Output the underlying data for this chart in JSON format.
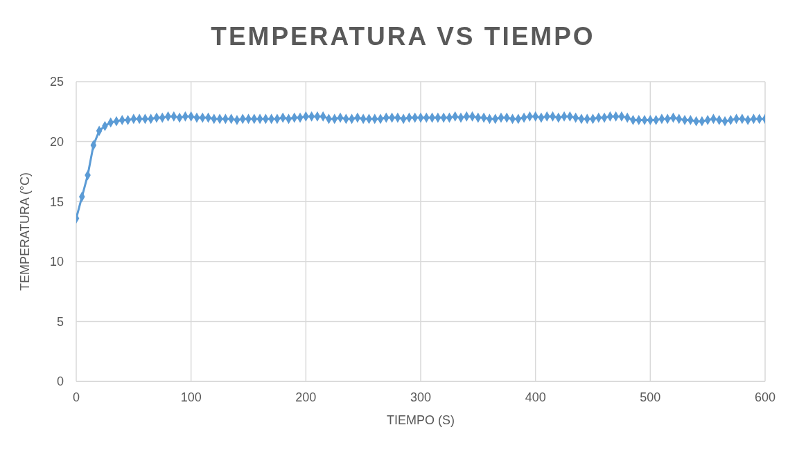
{
  "chart_data": {
    "type": "line",
    "title": "TEMPERATURA VS TIEMPO",
    "xlabel": "TIEMPO (S)",
    "ylabel": "TEMPERATURA (°C)",
    "x": [
      0,
      5,
      10,
      15,
      20,
      25,
      30,
      35,
      40,
      45,
      50,
      55,
      60,
      65,
      70,
      75,
      80,
      85,
      90,
      95,
      100,
      105,
      110,
      115,
      120,
      125,
      130,
      135,
      140,
      145,
      150,
      155,
      160,
      165,
      170,
      175,
      180,
      185,
      190,
      195,
      200,
      205,
      210,
      215,
      220,
      225,
      230,
      235,
      240,
      245,
      250,
      255,
      260,
      265,
      270,
      275,
      280,
      285,
      290,
      295,
      300,
      305,
      310,
      315,
      320,
      325,
      330,
      335,
      340,
      345,
      350,
      355,
      360,
      365,
      370,
      375,
      380,
      385,
      390,
      395,
      400,
      405,
      410,
      415,
      420,
      425,
      430,
      435,
      440,
      445,
      450,
      455,
      460,
      465,
      470,
      475,
      480,
      485,
      490,
      495,
      500,
      505,
      510,
      515,
      520,
      525,
      530,
      535,
      540,
      545,
      550,
      555,
      560,
      565,
      570,
      575,
      580,
      585,
      590,
      595,
      600
    ],
    "series": [
      {
        "color": "#5b9bd5",
        "values": [
          13.6,
          15.4,
          17.2,
          19.7,
          20.9,
          21.3,
          21.6,
          21.7,
          21.8,
          21.8,
          21.9,
          21.9,
          21.9,
          21.9,
          22.0,
          22.0,
          22.1,
          22.1,
          22.0,
          22.1,
          22.1,
          22.0,
          22.0,
          22.0,
          21.9,
          21.9,
          21.9,
          21.9,
          21.8,
          21.9,
          21.9,
          21.9,
          21.9,
          21.9,
          21.9,
          21.9,
          22.0,
          21.9,
          22.0,
          22.0,
          22.1,
          22.1,
          22.1,
          22.1,
          21.9,
          21.9,
          22.0,
          21.9,
          21.9,
          22.0,
          21.9,
          21.9,
          21.9,
          21.9,
          22.0,
          22.0,
          22.0,
          21.9,
          22.0,
          22.0,
          22.0,
          22.0,
          22.0,
          22.0,
          22.0,
          22.0,
          22.1,
          22.0,
          22.1,
          22.1,
          22.0,
          22.0,
          21.9,
          21.9,
          22.0,
          22.0,
          21.9,
          21.9,
          22.0,
          22.1,
          22.1,
          22.0,
          22.1,
          22.1,
          22.0,
          22.1,
          22.1,
          22.0,
          21.9,
          21.9,
          21.9,
          22.0,
          22.0,
          22.1,
          22.1,
          22.1,
          22.0,
          21.8,
          21.8,
          21.8,
          21.8,
          21.8,
          21.9,
          21.9,
          22.0,
          21.9,
          21.8,
          21.8,
          21.7,
          21.7,
          21.8,
          21.9,
          21.8,
          21.7,
          21.8,
          21.9,
          21.9,
          21.8,
          21.9,
          21.9,
          21.9
        ]
      }
    ],
    "xlim": [
      0,
      600
    ],
    "xticks": [
      0,
      100,
      200,
      300,
      400,
      500,
      600
    ],
    "ylim": [
      0,
      25
    ],
    "yticks": [
      0,
      5,
      10,
      15,
      20,
      25
    ],
    "grid": true,
    "marker": "diamond",
    "line_style": "solid"
  }
}
